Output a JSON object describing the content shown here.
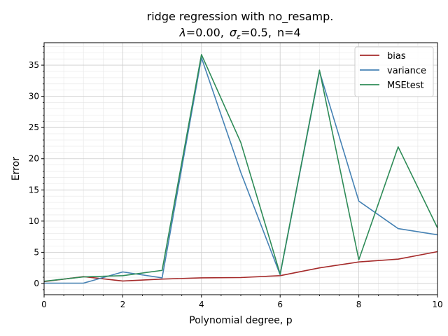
{
  "chart_data": {
    "type": "line",
    "title_line1": "ridge regression with no_resamp.",
    "title_line2": {
      "lambda_symbol": "λ",
      "lambda_value": "=0.00,",
      "sigma_symbol": "σ",
      "sigma_sub": "ε",
      "sigma_value": "=0.5,",
      "n_text": "n=4"
    },
    "xlabel": "Polynomial degree, p",
    "ylabel": "Error",
    "xlim": [
      0,
      10
    ],
    "ylim": [
      -1.8,
      38.6
    ],
    "xticks": [
      0,
      2,
      4,
      6,
      8,
      10
    ],
    "yticks": [
      0,
      5,
      10,
      15,
      20,
      25,
      30,
      35
    ],
    "grid": true,
    "legend_position": "top-right",
    "x": [
      0,
      1,
      2,
      3,
      4,
      5,
      6,
      7,
      8,
      9,
      10
    ],
    "series": [
      {
        "name": "bias",
        "color": "#a52a2a",
        "values": [
          0.3,
          1.1,
          0.4,
          0.7,
          0.9,
          0.95,
          1.25,
          2.5,
          3.45,
          3.9,
          5.1
        ]
      },
      {
        "name": "variance",
        "color": "#4682b4",
        "values": [
          0.05,
          0.05,
          1.85,
          0.9,
          36.2,
          17.8,
          1.4,
          34.0,
          13.2,
          8.8,
          7.8
        ]
      },
      {
        "name": "MSEtest",
        "color": "#2e8b57",
        "values": [
          0.35,
          1.05,
          1.25,
          2.1,
          36.7,
          22.6,
          1.5,
          34.2,
          3.8,
          21.9,
          8.9
        ]
      }
    ]
  }
}
